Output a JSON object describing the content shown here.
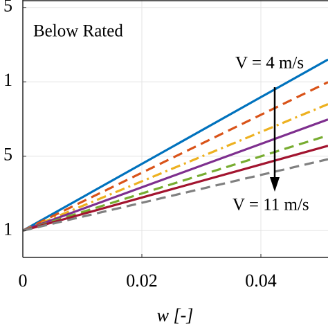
{
  "chart_data": {
    "type": "line",
    "xlabel": "w [-]",
    "annotations": [
      "Below Rated",
      "V = 4 m/s",
      "V = 11 m/s"
    ],
    "xlim": [
      0,
      0.05128
    ],
    "ylim": [
      0.982,
      1.155
    ],
    "xticks": [
      0,
      0.02,
      0.04
    ],
    "yticks": [
      1,
      {
        "value": 1.05,
        "label": "5"
      },
      {
        "value": 1.1,
        "label": "1"
      },
      {
        "value": 1.15,
        "label": "5"
      }
    ],
    "grid": true,
    "series": [
      {
        "color": "#0072BD",
        "style": "solid",
        "x": [
          0,
          0.05128
        ],
        "values": [
          1,
          1.115
        ]
      },
      {
        "color": "#D95319",
        "style": "dashed",
        "x": [
          0,
          0.05128
        ],
        "values": [
          1,
          1.0998
        ]
      },
      {
        "color": "#EDB120",
        "style": "dashdot",
        "x": [
          0,
          0.05128
        ],
        "values": [
          1,
          1.085
        ]
      },
      {
        "color": "#7E2F8E",
        "style": "solid",
        "x": [
          0,
          0.05128
        ],
        "values": [
          1,
          1.0747
        ]
      },
      {
        "color": "#77AC30",
        "style": "dashed",
        "x": [
          0,
          0.05128
        ],
        "values": [
          1,
          1.064
        ]
      },
      {
        "color": "#A2142F",
        "style": "solid",
        "x": [
          0,
          0.05128
        ],
        "values": [
          1,
          1.057
        ]
      },
      {
        "color": "#808080",
        "style": "dashed",
        "x": [
          0,
          0.05128
        ],
        "values": [
          1,
          1.048
        ]
      }
    ]
  }
}
